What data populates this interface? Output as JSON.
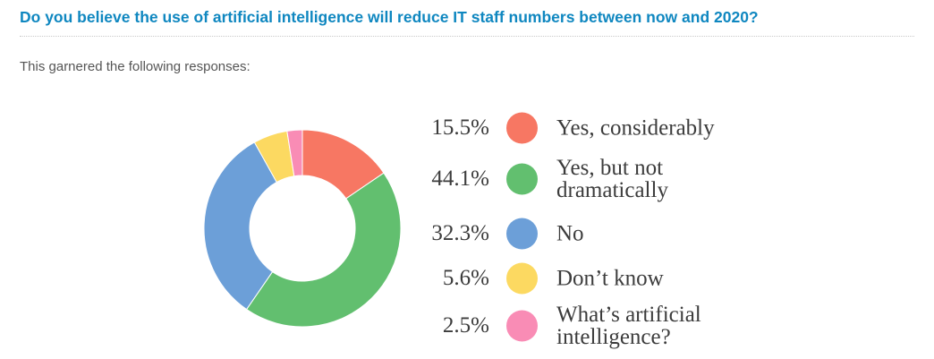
{
  "question": "Do you believe the use of artificial intelligence will reduce IT staff numbers between now and 2020?",
  "intro": "This garnered the following responses:",
  "chart_data": {
    "type": "pie",
    "variant": "donut",
    "title": "",
    "legend_position": "right",
    "categories": [
      "Yes, considerably",
      "Yes, but not dramatically",
      "No",
      "Don’t know",
      "What’s artificial intelligence?"
    ],
    "values": [
      15.5,
      44.1,
      32.3,
      5.6,
      2.5
    ],
    "value_labels": [
      "15.5%",
      "44.1%",
      "32.3%",
      "5.6%",
      "2.5%"
    ],
    "colors": [
      "#f77763",
      "#62bf6f",
      "#6c9fd8",
      "#fcd961",
      "#f98cb5"
    ]
  }
}
